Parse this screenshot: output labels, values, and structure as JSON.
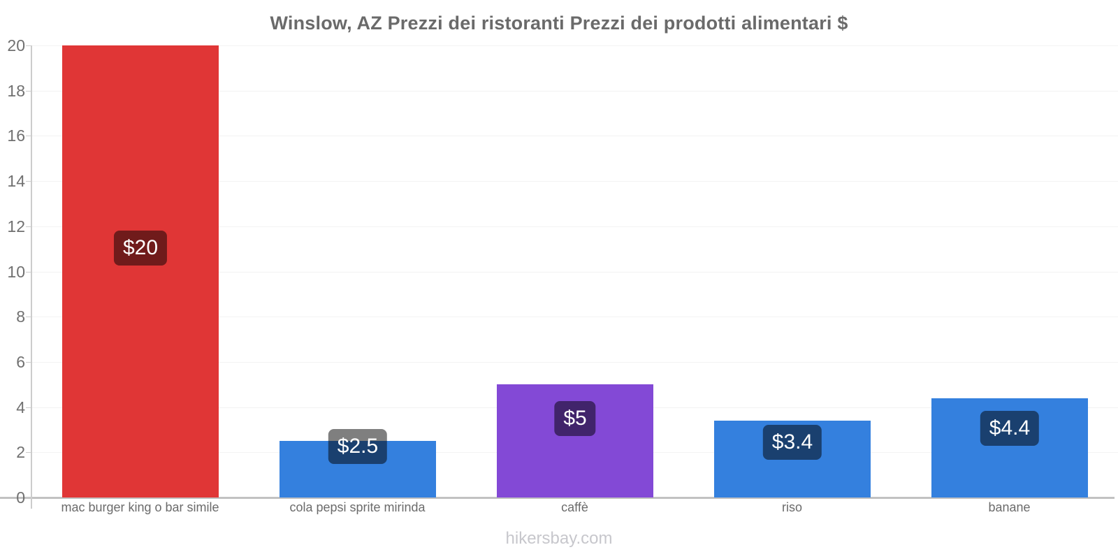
{
  "title": "Winslow, AZ Prezzi dei ristoranti Prezzi dei prodotti alimentari $",
  "footer": "hikersbay.com",
  "chart_data": {
    "type": "bar",
    "title": "Winslow, AZ Prezzi dei ristoranti Prezzi dei prodotti alimentari $",
    "categories": [
      "mac burger king o bar simile",
      "cola pepsi sprite mirinda",
      "caffè",
      "riso",
      "banane"
    ],
    "values": [
      20,
      2.5,
      5,
      3.4,
      4.4
    ],
    "value_labels": [
      "$20",
      "$2.5",
      "$5",
      "$3.4",
      "$4.4"
    ],
    "bar_colors": [
      "#e03636",
      "#3480de",
      "#8349d6",
      "#3480de",
      "#3480de"
    ],
    "xlabel": "",
    "ylabel": "",
    "ylim": [
      0,
      20
    ],
    "yticks": [
      0,
      2,
      4,
      6,
      8,
      10,
      12,
      14,
      16,
      18,
      20
    ],
    "grid": "horizontal-faint",
    "legend": "none",
    "label_style": {
      "background": "rgba(0,0,0,0.5)",
      "text_color": "#ffffff"
    },
    "watermark": "hikersbay.com"
  },
  "colors": {
    "title_text": "#6a6a6a",
    "tick_text": "#707070",
    "category_text": "#6b6b6b",
    "gridline": "#f3f3f3",
    "baseline": "#c2c2c2",
    "axis_line": "#cccccc",
    "footer_text": "#c7c7cc",
    "background": "#ffffff"
  }
}
